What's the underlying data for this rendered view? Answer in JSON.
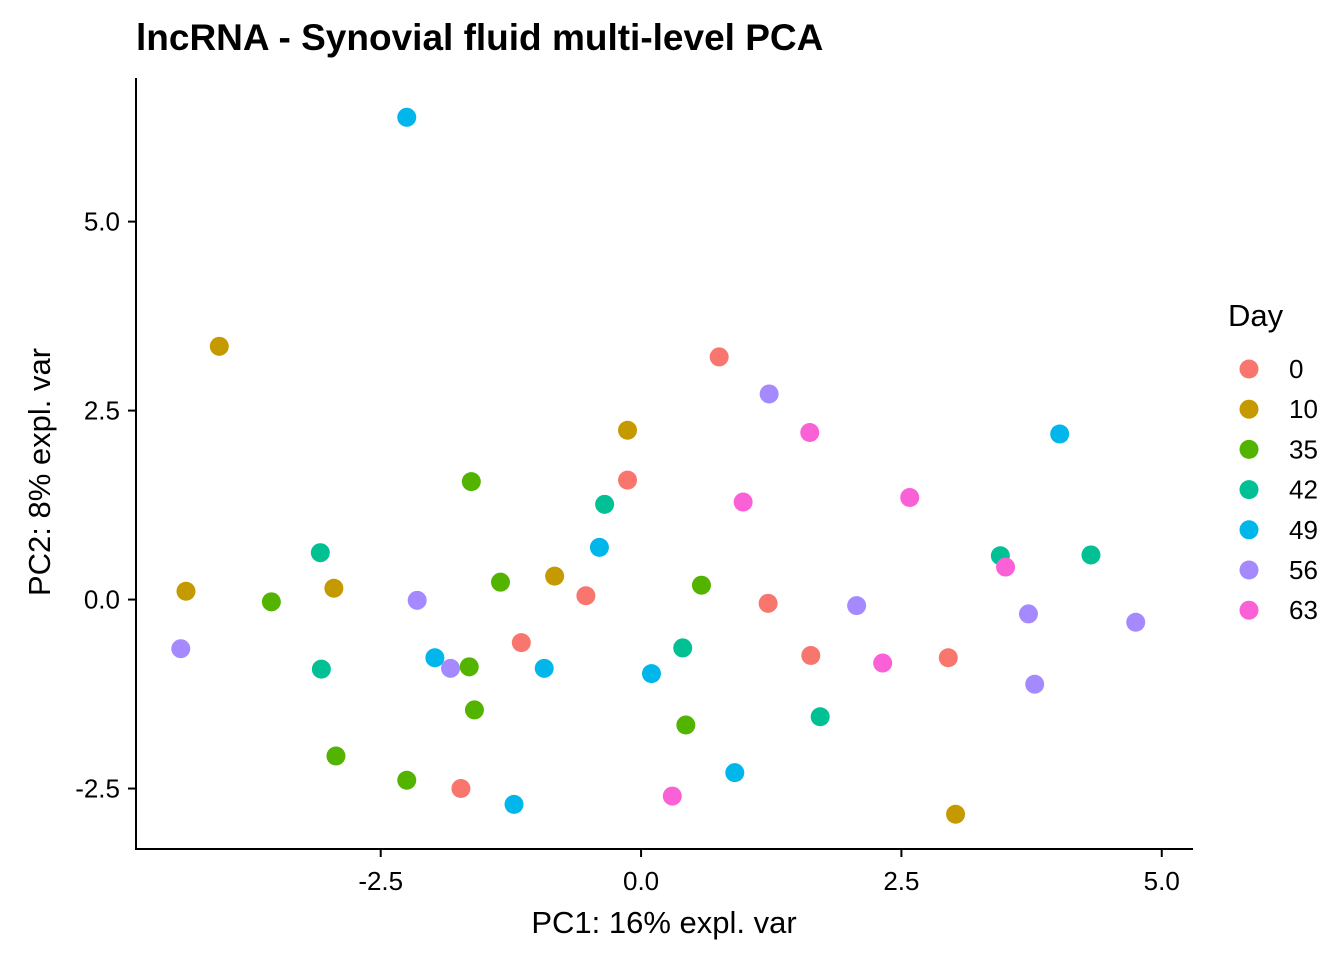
{
  "chart_data": {
    "type": "scatter",
    "title": "lncRNA - Synovial fluid multi-level PCA",
    "xlabel": "PC1: 16% expl. var",
    "ylabel": "PC2: 8% expl. var",
    "xlim": [
      -4.85,
      5.3
    ],
    "ylim": [
      -3.3,
      6.9
    ],
    "xticks": [
      -2.5,
      0.0,
      2.5,
      5.0
    ],
    "xtick_labels": [
      "-2.5",
      "0.0",
      "2.5",
      "5.0"
    ],
    "yticks": [
      -2.5,
      0.0,
      2.5,
      5.0
    ],
    "ytick_labels": [
      "-2.5",
      "0.0",
      "2.5",
      "5.0"
    ],
    "grid": false,
    "legend": {
      "title": "Day",
      "position": "right"
    },
    "series": [
      {
        "name": "0",
        "color": "#F8766D",
        "points": [
          [
            0.75,
            3.21
          ],
          [
            -0.13,
            1.58
          ],
          [
            -0.53,
            0.05
          ],
          [
            1.22,
            -0.05
          ],
          [
            -1.15,
            -0.57
          ],
          [
            1.63,
            -0.74
          ],
          [
            2.95,
            -0.77
          ],
          [
            -1.73,
            -2.5
          ]
        ]
      },
      {
        "name": "10",
        "color": "#C49A00",
        "points": [
          [
            -4.05,
            3.35
          ],
          [
            -0.13,
            2.24
          ],
          [
            -4.37,
            0.11
          ],
          [
            -2.95,
            0.15
          ],
          [
            -0.83,
            0.31
          ],
          [
            3.02,
            -2.84
          ]
        ]
      },
      {
        "name": "35",
        "color": "#53B400",
        "points": [
          [
            -1.63,
            1.56
          ],
          [
            -1.35,
            0.23
          ],
          [
            -3.55,
            -0.03
          ],
          [
            0.58,
            0.19
          ],
          [
            -1.65,
            -0.89
          ],
          [
            -1.6,
            -1.46
          ],
          [
            0.43,
            -1.66
          ],
          [
            -2.93,
            -2.07
          ],
          [
            -2.25,
            -2.39
          ]
        ]
      },
      {
        "name": "42",
        "color": "#00C094",
        "points": [
          [
            -0.35,
            1.26
          ],
          [
            -3.08,
            0.62
          ],
          [
            3.45,
            0.58
          ],
          [
            4.32,
            0.59
          ],
          [
            -3.07,
            -0.92
          ],
          [
            0.4,
            -0.64
          ],
          [
            1.72,
            -1.55
          ]
        ]
      },
      {
        "name": "49",
        "color": "#00B6EB",
        "points": [
          [
            -2.25,
            6.38
          ],
          [
            4.02,
            2.19
          ],
          [
            -0.4,
            0.69
          ],
          [
            -1.98,
            -0.77
          ],
          [
            -0.93,
            -0.91
          ],
          [
            0.1,
            -0.98
          ],
          [
            0.9,
            -2.29
          ],
          [
            -1.22,
            -2.71
          ]
        ]
      },
      {
        "name": "56",
        "color": "#A58AFF",
        "points": [
          [
            1.23,
            2.72
          ],
          [
            -2.15,
            -0.01
          ],
          [
            -4.42,
            -0.65
          ],
          [
            -1.83,
            -0.91
          ],
          [
            2.07,
            -0.08
          ],
          [
            3.72,
            -0.19
          ],
          [
            4.75,
            -0.3
          ],
          [
            3.78,
            -1.12
          ]
        ]
      },
      {
        "name": "63",
        "color": "#FB61D7",
        "points": [
          [
            1.62,
            2.21
          ],
          [
            0.98,
            1.29
          ],
          [
            2.58,
            1.35
          ],
          [
            3.5,
            0.43
          ],
          [
            2.32,
            -0.84
          ],
          [
            0.3,
            -2.6
          ]
        ]
      }
    ]
  }
}
